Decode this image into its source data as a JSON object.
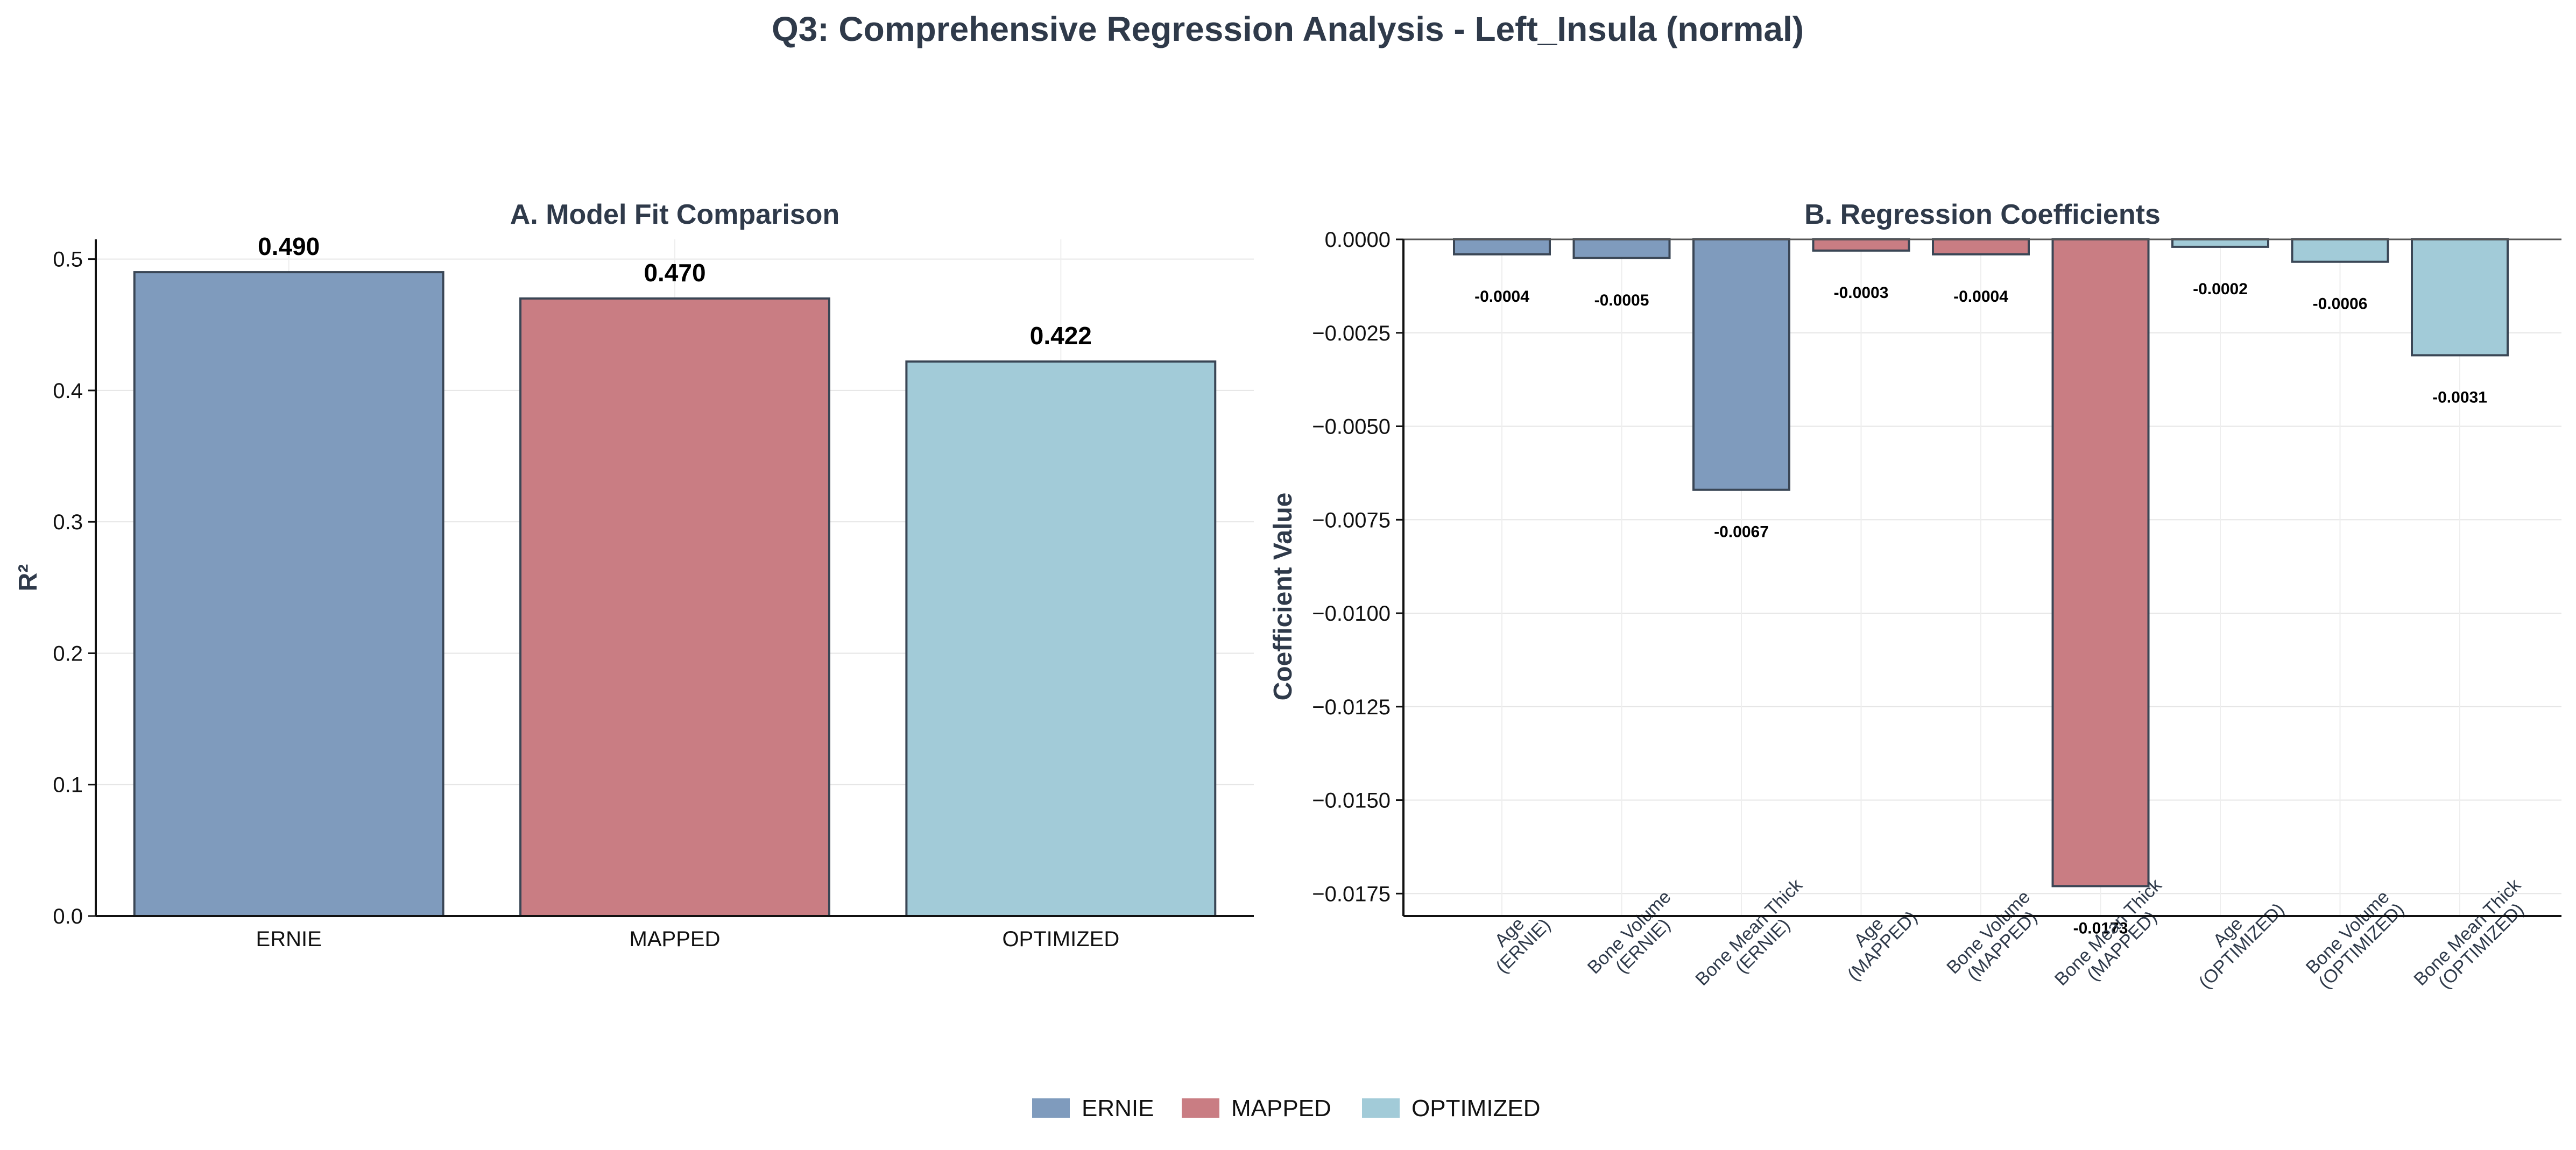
{
  "figure": {
    "suptitle": "Q3: Comprehensive Regression Analysis - Left_Insula (normal)"
  },
  "colors": {
    "ERNIE": "#7f9bbd",
    "MAPPED": "#c97d83",
    "OPTIMIZED": "#a2cbd8",
    "edge": "#3a4655",
    "text": "#2f3a4a"
  },
  "legend": {
    "placement": "bottom-center",
    "items": [
      "ERNIE",
      "MAPPED",
      "OPTIMIZED"
    ]
  },
  "chart_data": [
    {
      "type": "bar",
      "title": "A. Model Fit Comparison",
      "xlabel": "",
      "ylabel": "R²",
      "categories": [
        "ERNIE",
        "MAPPED",
        "OPTIMIZED"
      ],
      "values": [
        0.49,
        0.47,
        0.422
      ],
      "value_labels": [
        "0.490",
        "0.470",
        "0.422"
      ],
      "ylim": [
        0,
        0.515
      ],
      "yticks": [
        0.0,
        0.1,
        0.2,
        0.3,
        0.4,
        0.5
      ],
      "ytick_labels": [
        "0.0",
        "0.1",
        "0.2",
        "0.3",
        "0.4",
        "0.5"
      ],
      "grid": true
    },
    {
      "type": "bar",
      "title": "B. Regression Coefficients",
      "xlabel": "",
      "ylabel": "Coefficient Value",
      "categories": [
        [
          "Age",
          "(ERNIE)"
        ],
        [
          "Bone Volume",
          "(ERNIE)"
        ],
        [
          "Bone Mean Thick",
          "(ERNIE)"
        ],
        [
          "Age",
          "(MAPPED)"
        ],
        [
          "Bone Volume",
          "(MAPPED)"
        ],
        [
          "Bone Mean Thick",
          "(MAPPED)"
        ],
        [
          "Age",
          "(OPTIMIZED)"
        ],
        [
          "Bone Volume",
          "(OPTIMIZED)"
        ],
        [
          "Bone Mean Thick",
          "(OPTIMIZED)"
        ]
      ],
      "groups": [
        "ERNIE",
        "ERNIE",
        "ERNIE",
        "MAPPED",
        "MAPPED",
        "MAPPED",
        "OPTIMIZED",
        "OPTIMIZED",
        "OPTIMIZED"
      ],
      "values": [
        -0.0004,
        -0.0005,
        -0.0067,
        -0.0003,
        -0.0004,
        -0.0173,
        -0.0002,
        -0.0006,
        -0.0031
      ],
      "value_labels": [
        "-0.0004",
        "-0.0005",
        "-0.0067",
        "-0.0003",
        "-0.0004",
        "-0.0173",
        "-0.0002",
        "-0.0006",
        "-0.0031"
      ],
      "ylim": [
        -0.0181,
        0.0
      ],
      "yticks": [
        0.0,
        -0.0025,
        -0.005,
        -0.0075,
        -0.01,
        -0.0125,
        -0.015,
        -0.0175
      ],
      "ytick_labels": [
        "0.0000",
        "−0.0025",
        "−0.0050",
        "−0.0075",
        "−0.0100",
        "−0.0125",
        "−0.0150",
        "−0.0175"
      ],
      "grid": true
    }
  ]
}
